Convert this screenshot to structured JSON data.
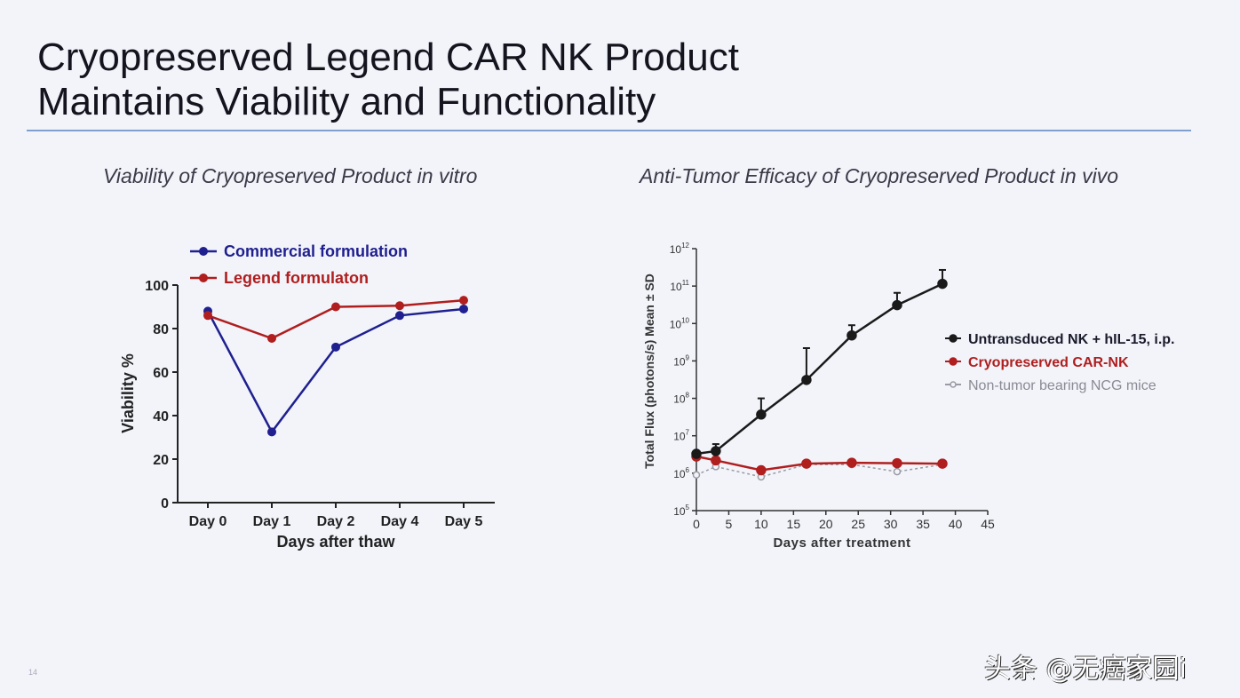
{
  "slide": {
    "title_line1": "Cryopreserved Legend CAR NK Product",
    "title_line2": "Maintains Viability and Functionality",
    "page_number": "14",
    "watermark": "头条 @无癌家园i"
  },
  "chart_data": [
    {
      "type": "line",
      "title": "Viability of Cryopreserved Product in vitro",
      "xlabel": "Days after thaw",
      "ylabel": "Viability %",
      "categories": [
        "Day 0",
        "Day 1",
        "Day 2",
        "Day 4",
        "Day 5"
      ],
      "ylim": [
        0,
        100
      ],
      "yticks": [
        0,
        20,
        40,
        60,
        80,
        100
      ],
      "legend_position": "top-left",
      "grid": false,
      "series": [
        {
          "name": "Commercial formulation",
          "color": "#1f1f8f",
          "values": [
            88,
            32.5,
            71.5,
            86,
            89
          ]
        },
        {
          "name": "Legend formulaton",
          "color": "#b01e1e",
          "values": [
            86,
            75.5,
            90,
            90.5,
            93
          ]
        }
      ]
    },
    {
      "type": "line",
      "title": "Anti-Tumor Efficacy of Cryopreserved Product in vivo",
      "xlabel": "Days after treatment",
      "ylabel": "Total Flux (photons/s) Mean ± SD",
      "xlim": [
        0,
        45
      ],
      "xticks": [
        0,
        5,
        10,
        15,
        20,
        25,
        30,
        35,
        40,
        45
      ],
      "yscale": "log",
      "ylim": [
        100000,
        1000000000000
      ],
      "ytick_exponents": [
        5,
        6,
        7,
        8,
        9,
        10,
        11,
        12
      ],
      "legend_position": "right",
      "grid": false,
      "x": [
        0,
        3,
        10,
        17,
        24,
        31,
        38
      ],
      "series": [
        {
          "name": "Untransduced NK + hIL-15, i.p.",
          "color": "#1a1a1a",
          "marker": "filled",
          "dash": false,
          "values": [
            3300000.0,
            3900000.0,
            37000000.0,
            310000000.0,
            4800000000.0,
            31000000000.0,
            115000000000.0
          ],
          "error_upper": [
            null,
            6000000.0,
            100000000.0,
            2200000000.0,
            9000000000.0,
            66000000000.0,
            270000000000.0
          ]
        },
        {
          "name": "Cryopreserved CAR-NK",
          "color": "#b01e1e",
          "marker": "filled",
          "dash": false,
          "values": [
            2800000.0,
            2200000.0,
            1200000.0,
            1800000.0,
            1900000.0,
            1850000.0,
            1800000.0
          ]
        },
        {
          "name": "Non-tumor bearing NCG mice",
          "color": "#9a9aa4",
          "marker": "open",
          "dash": true,
          "values": [
            900000.0,
            1500000.0,
            800000.0,
            1700000.0,
            1700000.0,
            1100000.0,
            1700000.0
          ]
        }
      ]
    }
  ]
}
